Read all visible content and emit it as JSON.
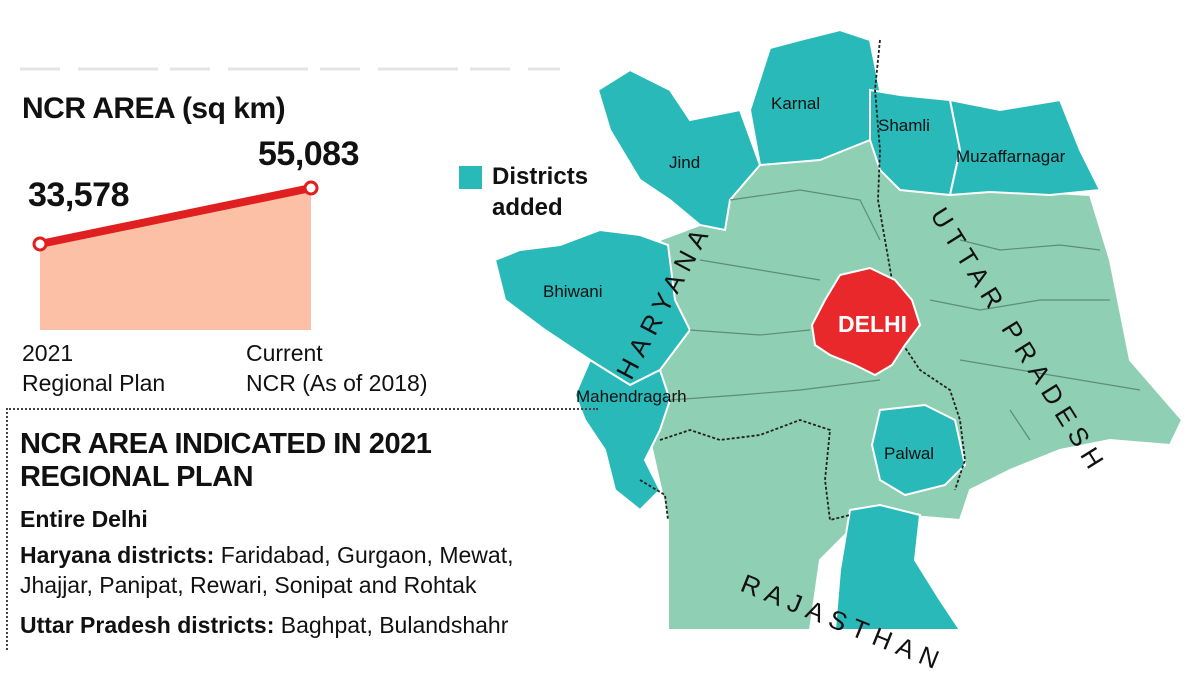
{
  "chart": {
    "title": "NCR AREA (sq km)",
    "chart_data": {
      "type": "area",
      "categories": [
        "2021 Regional Plan",
        "Current NCR (As of 2018)"
      ],
      "values": [
        33578,
        55083
      ],
      "value_labels": [
        "33,578",
        "55,083"
      ],
      "x_labels": [
        [
          "2021",
          "Regional Plan"
        ],
        [
          "Current",
          "NCR (As of 2018)"
        ]
      ],
      "colors": {
        "line": "#e02020",
        "fill": "#fbc0a6"
      }
    }
  },
  "legend": {
    "label_line1": "Districts",
    "label_line2": "added",
    "color": "#2ab9b9"
  },
  "map": {
    "colors": {
      "added": "#2ab9b9",
      "existing": "#8fcfb4",
      "delhi": "#e8282b"
    },
    "states": [
      "HARYANA",
      "UTTAR PRADESH",
      "RAJASTHAN"
    ],
    "delhi": "DELHI",
    "districts_added": [
      "Karnal",
      "Jind",
      "Shamli",
      "Muzaffarnagar",
      "Bhiwani",
      "Mahendragarh",
      "Palwal"
    ]
  },
  "info": {
    "heading_line1": "NCR AREA INDICATED IN 2021",
    "heading_line2": "REGIONAL PLAN",
    "entire": "Entire Delhi",
    "haryana_label": "Haryana districts:",
    "haryana_line1": " Faridabad, Gurgaon, Mewat,",
    "haryana_line2": "Jhajjar, Panipat, Rewari, Sonipat and Rohtak",
    "up_label": "Uttar Pradesh districts:",
    "up_line1": " Baghpat, Bulandshahr"
  }
}
